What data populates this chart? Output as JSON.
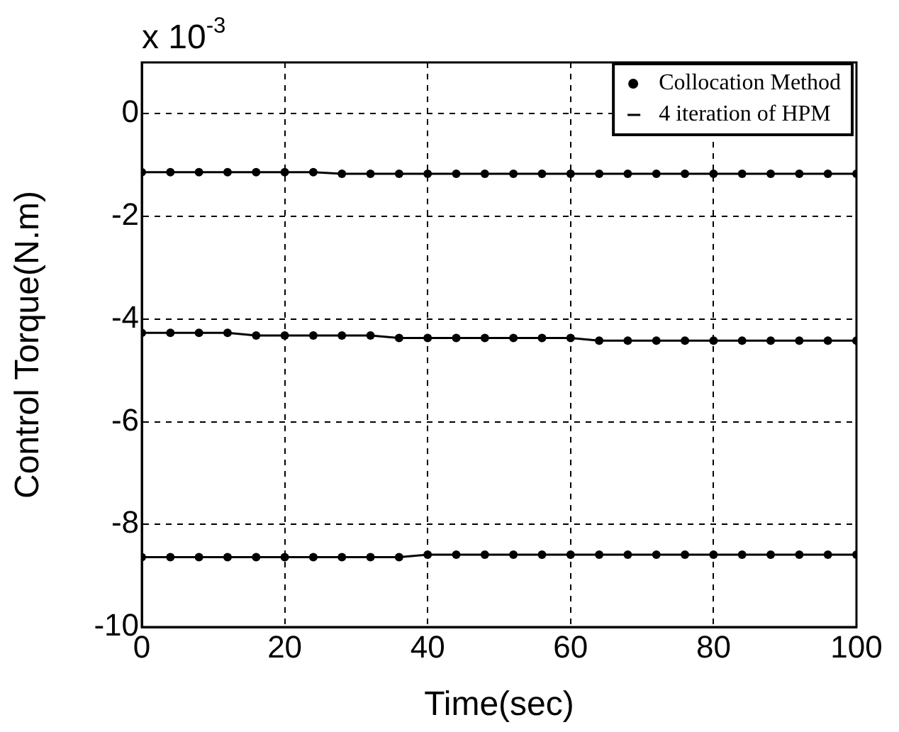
{
  "chart_data": {
    "type": "scatter",
    "xlabel": "Time(sec)",
    "ylabel": "Control Torque(N.m)",
    "annotations": [
      "x 10$^{-3}$"
    ],
    "x": [
      0,
      4,
      8,
      12,
      16,
      20,
      24,
      28,
      32,
      36,
      40,
      44,
      48,
      52,
      56,
      60,
      64,
      68,
      72,
      76,
      80,
      84,
      88,
      92,
      96,
      100
    ],
    "xlim": [
      0,
      100
    ],
    "xticks": [
      0,
      20,
      40,
      60,
      80,
      100
    ],
    "ylim": [
      -10,
      1
    ],
    "yticks": [
      -10,
      -8,
      -6,
      -4,
      -2,
      0
    ],
    "grid": true,
    "legend": "top right",
    "line_style": "dashed",
    "series": [
      {
        "name": "Collocation Method",
        "type": "scatter",
        "marker": "circle",
        "color": "#000000",
        "values": [
          -1.14,
          -1.14,
          -1.14,
          -1.14,
          -1.14,
          -1.14,
          -1.14,
          -1.17,
          -1.17,
          -1.17,
          -1.17,
          -1.17,
          -1.17,
          -1.17,
          -1.17,
          -1.17,
          -1.17,
          -1.17,
          -1.17,
          -1.17,
          -1.17,
          -1.17,
          -1.17,
          -1.17,
          -1.17,
          -1.17
        ]
      },
      {
        "name": "4 iteration of HPM",
        "type": "line",
        "marker": "none",
        "line_style": "solid",
        "color": "#000000",
        "values": [
          -1.14,
          -1.14,
          -1.14,
          -1.14,
          -1.14,
          -1.14,
          -1.14,
          -1.17,
          -1.17,
          -1.17,
          -1.17,
          -1.17,
          -1.17,
          -1.17,
          -1.17,
          -1.17,
          -1.17,
          -1.17,
          -1.17,
          -1.17,
          -1.17,
          -1.17,
          -1.17,
          -1.17,
          -1.17,
          -1.17
        ]
      },
      {
        "type": "scatter",
        "marker": "circle",
        "color": "#000000",
        "values": [
          -4.27,
          -4.27,
          -4.27,
          -4.27,
          -4.32,
          -4.32,
          -4.32,
          -4.32,
          -4.32,
          -4.37,
          -4.37,
          -4.37,
          -4.37,
          -4.37,
          -4.37,
          -4.37,
          -4.42,
          -4.42,
          -4.42,
          -4.42,
          -4.42,
          -4.42,
          -4.42,
          -4.42,
          -4.42,
          -4.42
        ]
      },
      {
        "type": "line",
        "marker": "none",
        "line_style": "solid",
        "color": "#000000",
        "values": [
          -4.27,
          -4.27,
          -4.27,
          -4.27,
          -4.32,
          -4.32,
          -4.32,
          -4.32,
          -4.32,
          -4.37,
          -4.37,
          -4.37,
          -4.37,
          -4.37,
          -4.37,
          -4.37,
          -4.42,
          -4.42,
          -4.42,
          -4.42,
          -4.42,
          -4.42,
          -4.42,
          -4.42,
          -4.42,
          -4.42
        ]
      },
      {
        "type": "scatter",
        "marker": "circle",
        "color": "#000000",
        "values": [
          -8.64,
          -8.64,
          -8.64,
          -8.64,
          -8.64,
          -8.64,
          -8.64,
          -8.64,
          -8.64,
          -8.64,
          -8.59,
          -8.59,
          -8.59,
          -8.59,
          -8.59,
          -8.59,
          -8.59,
          -8.59,
          -8.59,
          -8.59,
          -8.59,
          -8.59,
          -8.59,
          -8.59,
          -8.59,
          -8.59
        ]
      },
      {
        "type": "line",
        "marker": "none",
        "line_style": "solid",
        "color": "#000000",
        "values": [
          -8.64,
          -8.64,
          -8.64,
          -8.64,
          -8.64,
          -8.64,
          -8.64,
          -8.64,
          -8.64,
          -8.64,
          -8.59,
          -8.59,
          -8.59,
          -8.59,
          -8.59,
          -8.59,
          -8.59,
          -8.59,
          -8.59,
          -8.59,
          -8.59,
          -8.59,
          -8.59,
          -8.59,
          -8.59,
          -8.59
        ]
      }
    ]
  }
}
